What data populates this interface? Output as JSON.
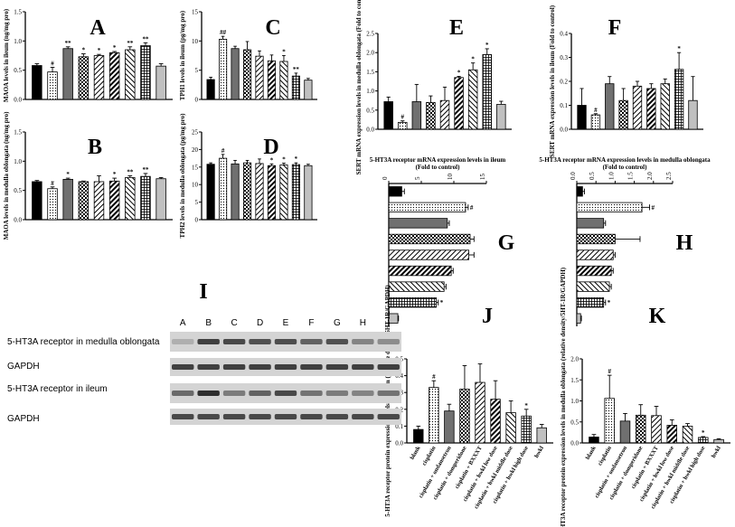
{
  "group_labels": [
    "blank",
    "cisplatin",
    "cisplatin + ondansetron",
    "cisplatin + domperidone",
    "cisplatin + BXXXT",
    "cisplatin + hwkl low dose",
    "cisplatin + hwkl middle dose",
    "cisplatin + hwkl high dose",
    "hwkl"
  ],
  "lanes": [
    "A",
    "B",
    "C",
    "D",
    "E",
    "F",
    "G",
    "H",
    "I"
  ],
  "blot": {
    "panel": "I",
    "rows": [
      "5-HT3A receptor in medulla oblongata",
      "GAPDH",
      "5-HT3A receptor in ileum",
      "GAPDH"
    ]
  },
  "chart_data": [
    {
      "panel": "A",
      "type": "bar",
      "ylabel": "MAOA levels in ileum (ng/mg pro)",
      "ylim": [
        0,
        1.5
      ],
      "yticks": [
        "0.0",
        "0.5",
        "1.0",
        "1.5"
      ],
      "values": [
        0.58,
        0.47,
        0.87,
        0.73,
        0.75,
        0.8,
        0.85,
        0.92,
        0.57
      ],
      "errors": [
        0.03,
        0.08,
        0.03,
        0.05,
        0.02,
        0.02,
        0.05,
        0.05,
        0.04
      ],
      "marks": [
        "",
        "#",
        "**",
        "*",
        "*",
        "*",
        "**",
        "**",
        ""
      ]
    },
    {
      "panel": "B",
      "type": "bar",
      "ylabel": "MAOA levels in medulla oblongata (ng/mg pro)",
      "ylim": [
        0,
        1.5
      ],
      "yticks": [
        "0.0",
        "0.5",
        "1.0",
        "1.5"
      ],
      "values": [
        0.65,
        0.53,
        0.69,
        0.65,
        0.65,
        0.66,
        0.72,
        0.74,
        0.7
      ],
      "errors": [
        0.02,
        0.03,
        0.02,
        0.01,
        0.1,
        0.05,
        0.03,
        0.05,
        0.02
      ],
      "marks": [
        "",
        "#",
        "*",
        "",
        "",
        "*",
        "**",
        "**",
        ""
      ]
    },
    {
      "panel": "C",
      "type": "bar",
      "ylabel": "TPH1 levels in ileum (pg/mg pro)",
      "ylim": [
        0,
        15
      ],
      "yticks": [
        "0",
        "5",
        "10",
        "15"
      ],
      "values": [
        3.4,
        10.3,
        8.7,
        8.5,
        7.4,
        6.6,
        6.5,
        4.0,
        3.3
      ],
      "errors": [
        0.4,
        0.5,
        0.4,
        1.4,
        0.9,
        1.0,
        1.0,
        0.5,
        0.3
      ],
      "marks": [
        "",
        "##",
        "",
        "",
        "",
        "",
        "*",
        "**",
        ""
      ]
    },
    {
      "panel": "D",
      "type": "bar",
      "ylabel": "TPH2 levels in medulla oblongata (pg/mg pro)",
      "ylim": [
        0,
        25
      ],
      "yticks": [
        "0",
        "5",
        "10",
        "15",
        "20",
        "25"
      ],
      "values": [
        15.8,
        17.5,
        15.9,
        16.2,
        16.0,
        15.4,
        15.6,
        15.7,
        15.4
      ],
      "errors": [
        0.4,
        1.1,
        1.0,
        0.7,
        1.3,
        0.5,
        0.5,
        0.5,
        0.4
      ],
      "marks": [
        "",
        "#",
        "",
        "",
        "",
        "*",
        "*",
        "*",
        ""
      ]
    },
    {
      "panel": "E",
      "type": "bar",
      "ylabel": "SERT mRNA expression levels in medulla oblongata (Fold to control)",
      "ylim": [
        0,
        2.5
      ],
      "yticks": [
        "0.0",
        "0.5",
        "1.0",
        "1.5",
        "2.0",
        "2.5"
      ],
      "values": [
        0.72,
        0.18,
        0.72,
        0.7,
        0.75,
        1.35,
        1.55,
        1.95,
        0.65
      ],
      "errors": [
        0.12,
        0.04,
        0.45,
        0.17,
        0.35,
        0.03,
        0.18,
        0.15,
        0.08
      ],
      "marks": [
        "",
        "#",
        "",
        "",
        "",
        "*",
        "*",
        "*",
        ""
      ]
    },
    {
      "panel": "F",
      "type": "bar",
      "ylabel": "SERT mRNA expression levels in ileum (Fold to control)",
      "ylim": [
        0,
        0.4
      ],
      "yticks": [
        "0.0",
        "0.1",
        "0.2",
        "0.3",
        "0.4"
      ],
      "values": [
        0.1,
        0.06,
        0.19,
        0.12,
        0.18,
        0.17,
        0.19,
        0.25,
        0.12
      ],
      "errors": [
        0.07,
        0.005,
        0.03,
        0.05,
        0.02,
        0.02,
        0.02,
        0.07,
        0.1
      ],
      "marks": [
        "",
        "#",
        "",
        "",
        "",
        "",
        "",
        "*",
        ""
      ]
    },
    {
      "panel": "G",
      "type": "bar",
      "orientation": "horizontal",
      "xlabel": "5-HT3A receptor mRNA expression levels in ileum (Fold to control)",
      "xlim": [
        0,
        15
      ],
      "xticks": [
        "0",
        "5",
        "10",
        "15"
      ],
      "values": [
        2.0,
        11.8,
        9.0,
        12.5,
        12.3,
        9.6,
        8.5,
        7.3,
        1.4
      ],
      "errors": [
        0.4,
        0.4,
        0.3,
        0.6,
        0.8,
        0.3,
        0.3,
        0.3,
        0.1
      ],
      "marks": [
        "",
        "#",
        "",
        "",
        "",
        "",
        "",
        "*",
        ""
      ]
    },
    {
      "panel": "H",
      "type": "bar",
      "orientation": "horizontal",
      "xlabel": "5-HT3A receptor mRNA expression levels in medulla oblongata (Fold to control)",
      "xlim": [
        0,
        2.5
      ],
      "xticks": [
        "0.0",
        "0.5",
        "1.0",
        "1.5",
        "2.0",
        "2.5"
      ],
      "values": [
        0.15,
        1.7,
        0.7,
        1.0,
        0.95,
        0.9,
        0.85,
        0.7,
        0.1
      ],
      "errors": [
        0.05,
        0.2,
        0.05,
        0.65,
        0.05,
        0.05,
        0.05,
        0.05,
        0.02
      ],
      "marks": [
        "",
        "#",
        "",
        "",
        "",
        "",
        "",
        "*",
        ""
      ]
    },
    {
      "panel": "J",
      "type": "bar",
      "ylabel": "5-HT3A receptor protein expression levels in ileum (relative density/5HT-1R/GAPDH)",
      "ylim": [
        0,
        0.5
      ],
      "yticks": [
        "0.0",
        "0.1",
        "0.2",
        "0.3",
        "0.4",
        "0.5"
      ],
      "values": [
        0.08,
        0.33,
        0.19,
        0.32,
        0.36,
        0.26,
        0.18,
        0.16,
        0.09
      ],
      "errors": [
        0.02,
        0.04,
        0.04,
        0.14,
        0.11,
        0.11,
        0.07,
        0.04,
        0.02
      ],
      "marks": [
        "",
        "#",
        "",
        "",
        "",
        "",
        "",
        "*",
        ""
      ]
    },
    {
      "panel": "K",
      "type": "bar",
      "ylabel": "5-HT3A receptor protein expression levels in medulla oblongata (relative density/5HT-1R/GAPDH)",
      "ylim": [
        0,
        2.0
      ],
      "yticks": [
        "0.0",
        "0.5",
        "1.0",
        "1.5",
        "2.0"
      ],
      "values": [
        0.14,
        1.06,
        0.52,
        0.66,
        0.65,
        0.42,
        0.4,
        0.13,
        0.08
      ],
      "errors": [
        0.06,
        0.55,
        0.18,
        0.25,
        0.22,
        0.13,
        0.06,
        0.02,
        0.02
      ],
      "marks": [
        "",
        "#",
        "",
        "",
        "",
        "",
        "",
        "*",
        ""
      ]
    }
  ]
}
